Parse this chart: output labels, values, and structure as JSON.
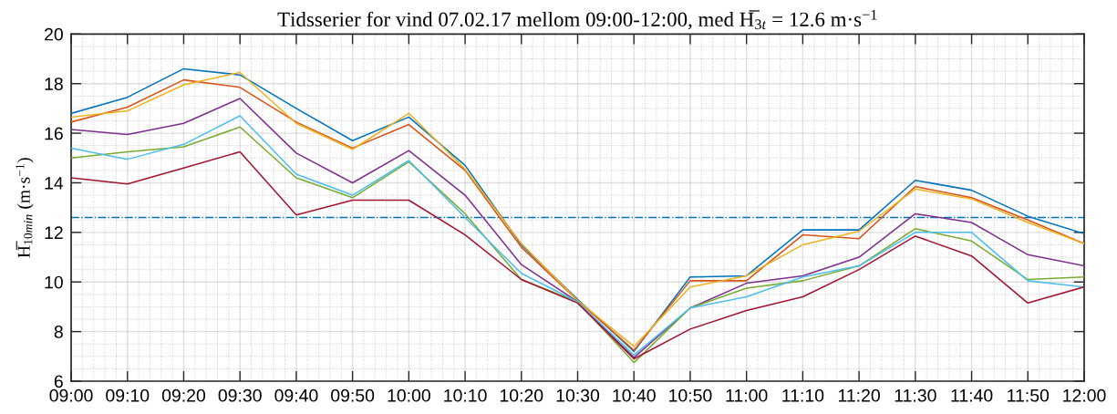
{
  "chart_data": {
    "type": "line",
    "title": "Tidsserier for vind 07.02.17 mellom 09:00-12:00, med H̅$_{3t}$ = 12.6 m·s$^{−1}$",
    "ylabel": "H̅$_{10min}$ (m·s$^{−1}$)",
    "x": [
      9,
      9.1667,
      9.3333,
      9.5,
      9.6667,
      9.8333,
      10,
      10.1667,
      10.3333,
      10.5,
      10.6667,
      10.8333,
      11,
      11.1667,
      11.3333,
      11.5,
      11.6667,
      11.8333,
      12
    ],
    "xlim": [
      9,
      12
    ],
    "xticks": [
      {
        "value": 9,
        "label": "09:00"
      },
      {
        "value": 9.1667,
        "label": "09:10"
      },
      {
        "value": 9.3333,
        "label": "09:20"
      },
      {
        "value": 9.5,
        "label": "09:30"
      },
      {
        "value": 9.6667,
        "label": "09:40"
      },
      {
        "value": 9.8333,
        "label": "09:50"
      },
      {
        "value": 10,
        "label": "10:00"
      },
      {
        "value": 10.1667,
        "label": "10:10"
      },
      {
        "value": 10.3333,
        "label": "10:20"
      },
      {
        "value": 10.5,
        "label": "10:30"
      },
      {
        "value": 10.6667,
        "label": "10:40"
      },
      {
        "value": 10.8333,
        "label": "10:50"
      },
      {
        "value": 11,
        "label": "11:00"
      },
      {
        "value": 11.1667,
        "label": "11:10"
      },
      {
        "value": 11.3333,
        "label": "11:20"
      },
      {
        "value": 11.5,
        "label": "11:30"
      },
      {
        "value": 11.6667,
        "label": "11:40"
      },
      {
        "value": 11.8333,
        "label": "11:50"
      },
      {
        "value": 12,
        "label": "12:00"
      }
    ],
    "ylim": [
      6,
      20
    ],
    "yticks": [
      6,
      8,
      10,
      12,
      14,
      16,
      18,
      20
    ],
    "grid": true,
    "series": [
      {
        "color": "#0072bd",
        "values": [
          16.8,
          17.45,
          18.6,
          18.35,
          17.0,
          15.7,
          16.65,
          14.7,
          11.5,
          9.3,
          7.2,
          10.2,
          10.25,
          12.1,
          12.1,
          14.1,
          13.7,
          12.65,
          11.95
        ]
      },
      {
        "color": "#d95319",
        "values": [
          16.45,
          17.05,
          18.15,
          17.85,
          16.45,
          15.4,
          16.35,
          14.5,
          11.4,
          9.25,
          7.25,
          10.05,
          10.05,
          11.9,
          11.75,
          13.85,
          13.4,
          12.5,
          11.55
        ]
      },
      {
        "color": "#edb120",
        "values": [
          16.65,
          16.9,
          17.95,
          18.45,
          16.4,
          15.35,
          16.8,
          14.55,
          11.55,
          9.25,
          7.4,
          9.8,
          10.25,
          11.5,
          12.05,
          13.75,
          13.35,
          12.4,
          11.55
        ]
      },
      {
        "color": "#7e2f8e",
        "values": [
          16.15,
          15.95,
          16.4,
          17.4,
          15.2,
          14.0,
          15.3,
          13.5,
          10.7,
          9.2,
          6.95,
          8.95,
          9.95,
          10.25,
          11.0,
          12.75,
          12.4,
          11.1,
          10.65
        ]
      },
      {
        "color": "#77ac30",
        "values": [
          15.0,
          15.25,
          15.45,
          16.25,
          14.2,
          13.4,
          14.85,
          12.75,
          10.1,
          9.2,
          6.75,
          8.95,
          9.75,
          10.05,
          10.65,
          12.15,
          11.65,
          10.1,
          10.2
        ]
      },
      {
        "color": "#4dbeee",
        "values": [
          15.4,
          14.95,
          15.55,
          16.7,
          14.35,
          13.5,
          14.9,
          12.6,
          10.35,
          9.2,
          7.05,
          8.95,
          9.4,
          10.2,
          10.65,
          12.0,
          12.0,
          10.05,
          9.8
        ]
      },
      {
        "color": "#a2142f",
        "values": [
          14.2,
          13.95,
          14.6,
          15.25,
          12.7,
          13.3,
          13.3,
          11.9,
          10.1,
          9.15,
          6.9,
          8.1,
          8.85,
          9.4,
          10.5,
          11.85,
          11.05,
          9.15,
          9.8
        ]
      }
    ],
    "ref_lines": [
      {
        "axis": "y",
        "value": 12.6,
        "color": "#0072bd",
        "line_style": "dashdot"
      }
    ]
  }
}
